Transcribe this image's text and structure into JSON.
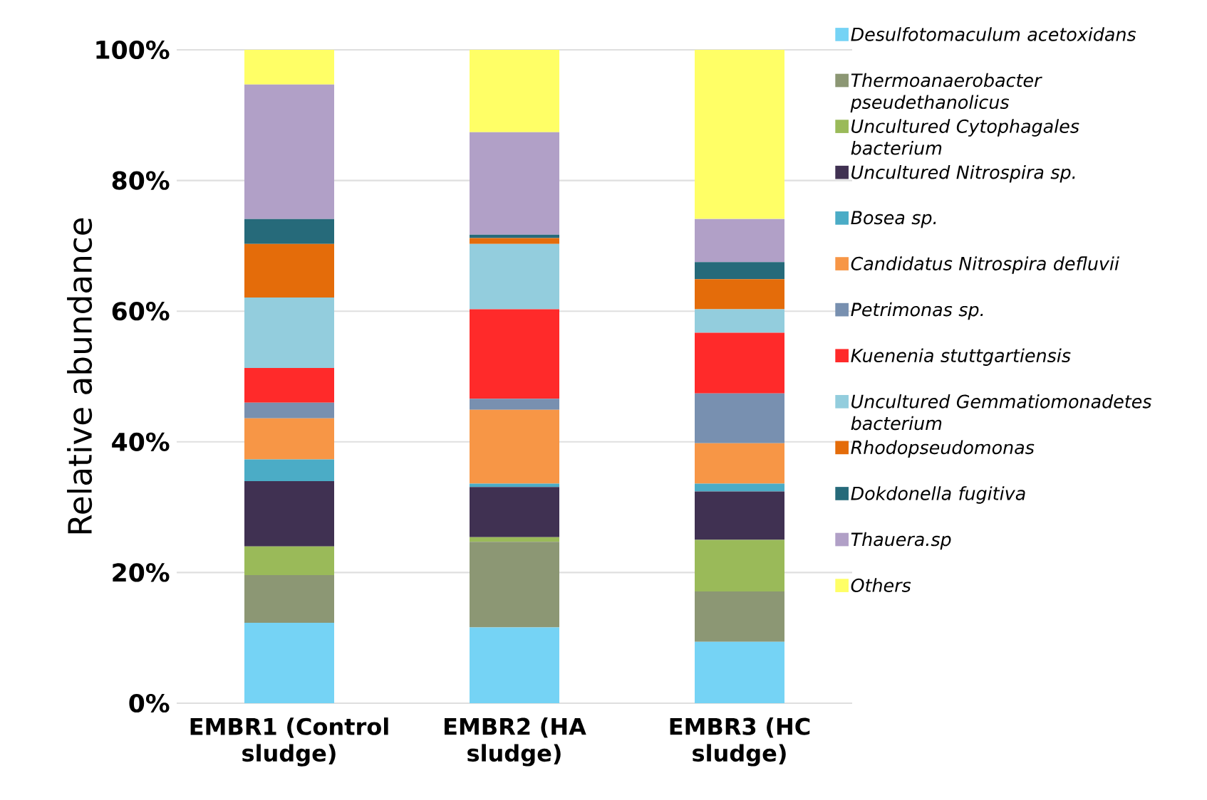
{
  "chart_data": {
    "type": "bar",
    "stacked": true,
    "ylabel": "Relative abundance",
    "categories": [
      "EMBR1 (Control sludge)",
      "EMBR2 (HA sludge)",
      "EMBR3 (HC sludge)"
    ],
    "ylim": [
      0,
      100
    ],
    "yticks": [
      {
        "value": 0,
        "label": "0%"
      },
      {
        "value": 20,
        "label": "20%"
      },
      {
        "value": 40,
        "label": "40%"
      },
      {
        "value": 60,
        "label": "60%"
      },
      {
        "value": 80,
        "label": "80%"
      },
      {
        "value": 100,
        "label": "100%"
      }
    ],
    "grid": "y",
    "legend": "right",
    "series": [
      {
        "name": "Desulfotomaculum acetoxidans",
        "color": "#75d3f5",
        "values": [
          12.3,
          11.6,
          9.4
        ]
      },
      {
        "name": "Thermoanaerobacter pseudethanolicus",
        "color": "#8c9774",
        "values": [
          7.3,
          13.1,
          7.7
        ]
      },
      {
        "name": "Uncultured  Cytophagales bacterium",
        "color": "#9aba59",
        "values": [
          4.4,
          0.7,
          7.9
        ]
      },
      {
        "name": "Uncultured Nitrospira sp.",
        "color": "#403152",
        "values": [
          10.0,
          7.7,
          7.4
        ]
      },
      {
        "name": "Bosea sp.",
        "color": "#4bacc6",
        "values": [
          3.3,
          0.5,
          1.2
        ]
      },
      {
        "name": "Candidatus Nitrospira defluvii",
        "color": "#f79646",
        "values": [
          6.3,
          11.3,
          6.2
        ]
      },
      {
        "name": "Petrimonas sp.",
        "color": "#7890b0",
        "values": [
          2.4,
          1.7,
          7.6
        ]
      },
      {
        "name": "Kuenenia stuttgartiensis",
        "color": "#ff2a2a",
        "values": [
          5.3,
          13.7,
          9.3
        ]
      },
      {
        "name": "Uncultured  Gemmatiomonadetes bacterium",
        "color": "#93cddd",
        "values": [
          10.8,
          10.0,
          3.6
        ]
      },
      {
        "name": "Rhodopseudomonas",
        "color": "#e46c0a",
        "values": [
          8.2,
          0.9,
          4.6
        ]
      },
      {
        "name": "Dokdonella fugitiva",
        "color": "#266a7a",
        "values": [
          3.8,
          0.5,
          2.6
        ]
      },
      {
        "name": "Thauera.sp",
        "color": "#b1a0c7",
        "values": [
          20.6,
          15.7,
          6.6
        ]
      },
      {
        "name": "Others",
        "color": "#ffff66",
        "values": [
          5.3,
          12.6,
          25.9
        ]
      }
    ]
  }
}
